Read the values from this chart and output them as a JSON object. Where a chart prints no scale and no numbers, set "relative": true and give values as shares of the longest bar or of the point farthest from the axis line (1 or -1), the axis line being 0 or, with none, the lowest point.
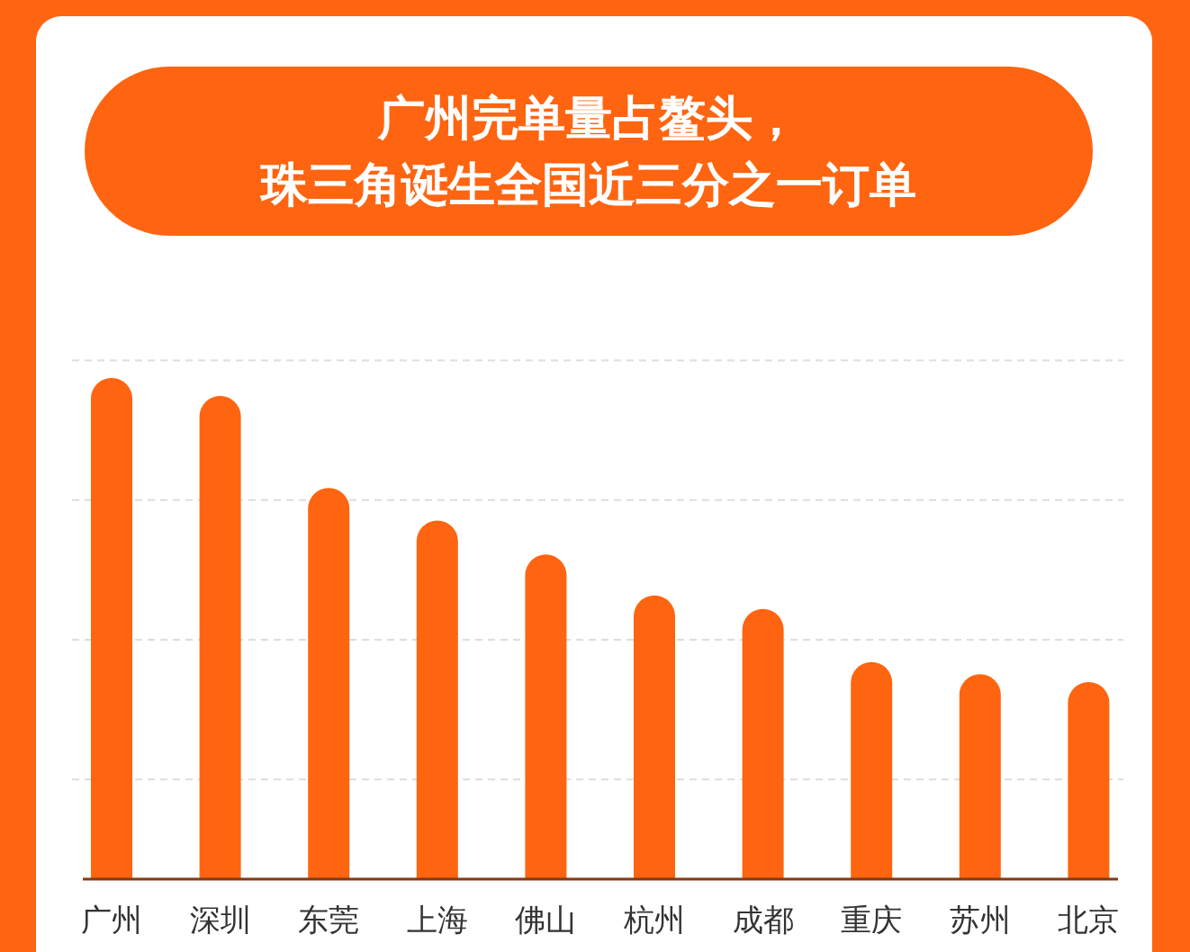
{
  "chart_data": {
    "type": "bar",
    "title": "广州完单量占鳌头，珠三角诞生全国近三分之一订单",
    "categories": [
      "广州",
      "深圳",
      "东莞",
      "上海",
      "佛山",
      "杭州",
      "成都",
      "重庆",
      "苏州",
      "北京"
    ],
    "values": [
      1,
      0.964,
      0.78,
      0.715,
      0.647,
      0.565,
      0.538,
      0.432,
      0.408,
      0.392
    ],
    "color": "#ff6410",
    "relative": true,
    "grid": "y"
  }
}
